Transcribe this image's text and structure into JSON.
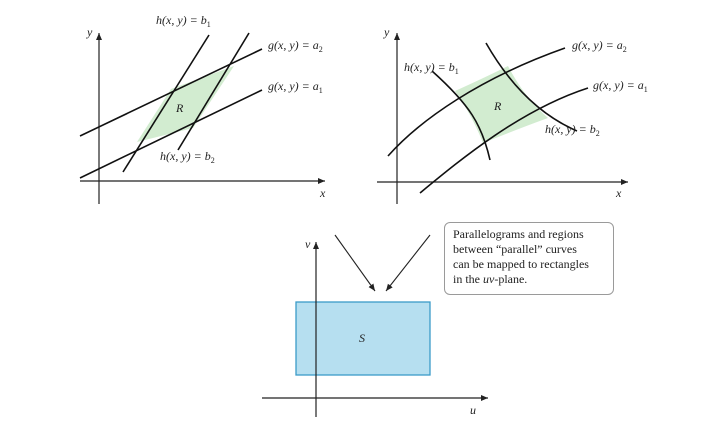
{
  "colors": {
    "region_green": "#d2ecd0",
    "region_blue": "#b6dff0",
    "blue_border": "#3b9cc8"
  },
  "panel_left": {
    "y_axis": "y",
    "x_axis": "x",
    "region_label": "R",
    "curves": {
      "h_b1": "h(x, y) = b",
      "h_b1_sub": "1",
      "h_b2": "h(x, y) = b",
      "h_b2_sub": "2",
      "g_a2": "g(x, y) = a",
      "g_a2_sub": "2",
      "g_a1": "g(x, y) = a",
      "g_a1_sub": "1"
    }
  },
  "panel_right": {
    "y_axis": "y",
    "x_axis": "x",
    "region_label": "R",
    "curves": {
      "h_b1": "h(x, y) = b",
      "h_b1_sub": "1",
      "h_b2": "h(x, y) = b",
      "h_b2_sub": "2",
      "g_a2": "g(x, y) = a",
      "g_a2_sub": "2",
      "g_a1": "g(x, y) = a",
      "g_a1_sub": "1"
    }
  },
  "panel_bottom": {
    "v_axis": "v",
    "u_axis": "u",
    "region_label": "S"
  },
  "callout": {
    "line1": "Parallelograms and regions",
    "line2": "between “parallel” curves",
    "line3": "can be mapped to rectangles",
    "line4_prefix": "in the ",
    "line4_var": "uv",
    "line4_suffix": "-plane."
  }
}
